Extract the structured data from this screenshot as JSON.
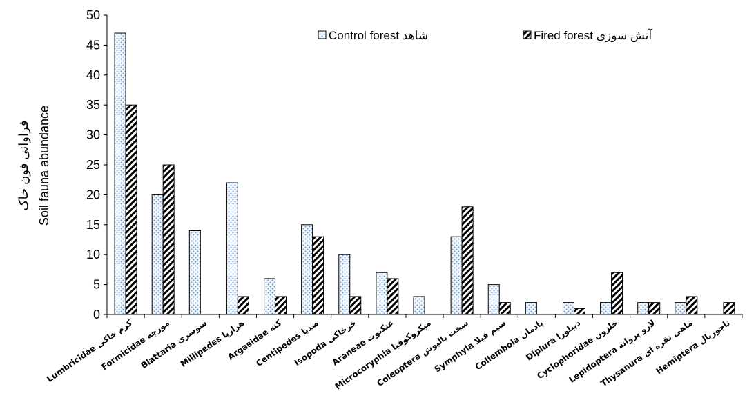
{
  "chart_data": {
    "type": "bar",
    "categories": [
      "Lumbricidae کرم خاکی",
      "Formicidae مورچه",
      "Blattaria سوسری",
      "Millipedes هزارپا",
      "Argasidae کنه",
      "Centipedes صدپا",
      "Isopoda خرخاکی",
      "Araneae عنکبوت",
      "Microcoryphia میکروکوفیا",
      "Coleoptera سخت بالپوش",
      "Symphyla سیم فیلا",
      "Collembola پادمان",
      "Diplura دیپلورا",
      "Cyclophoridae حلزون",
      "Lepidoptera لارو پروانه",
      "Thysanura ماهی نقره ای",
      "Hemiptera ناجوربال"
    ],
    "series": [
      {
        "name": "Control forest  شاهد",
        "values": [
          47,
          20,
          14,
          22,
          6,
          15,
          10,
          7,
          3,
          13,
          5,
          2,
          2,
          2,
          2,
          2,
          0
        ],
        "color": "#dbeaf7",
        "pattern": "dots"
      },
      {
        "name": "Fired forest آتش سوزی",
        "values": [
          35,
          25,
          0,
          3,
          3,
          13,
          3,
          6,
          0,
          18,
          2,
          0,
          1,
          7,
          2,
          3,
          2
        ],
        "color": "#000000",
        "pattern": "diagonal-hatch"
      }
    ],
    "title": "",
    "xlabel": "",
    "ylabel": "Soil fauna abundance",
    "ylabel_secondary": "فراوانی فون خاک",
    "ylim": [
      0,
      50
    ],
    "yticks": [
      0,
      5,
      10,
      15,
      20,
      25,
      30,
      35,
      40,
      45,
      50
    ],
    "grid": false,
    "legend_position": "top-right"
  }
}
